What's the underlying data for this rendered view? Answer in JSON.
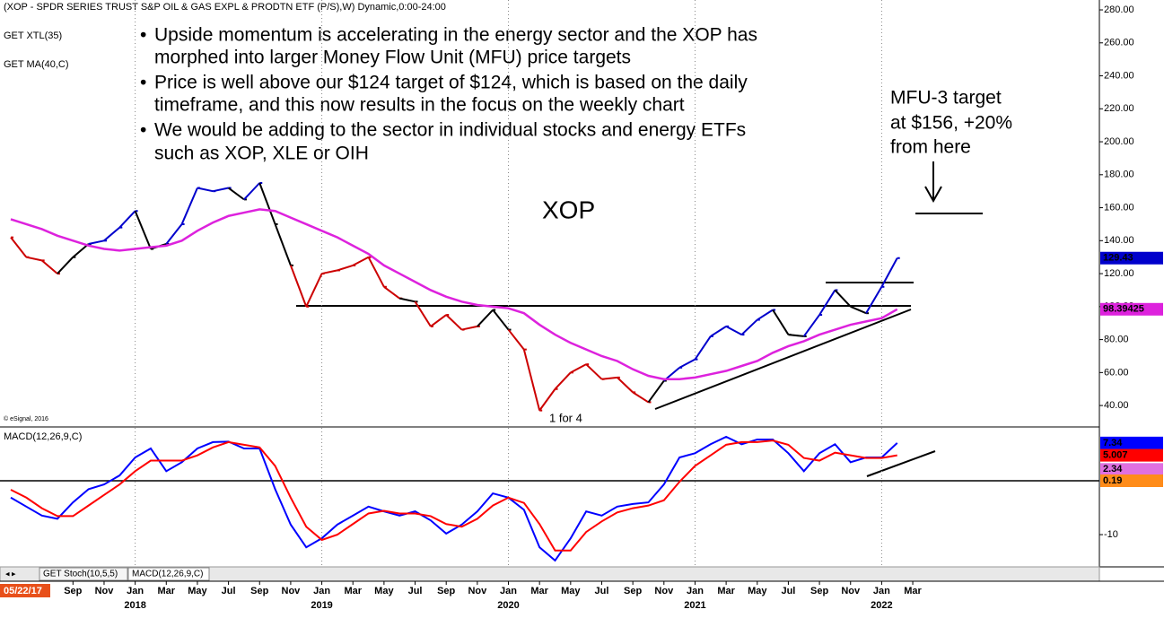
{
  "chart_data": [
    {
      "type": "line",
      "title": "(XOP - SPDR SERIES TRUST S&P OIL & GAS EXPL & PRODTN ETF (P/S),W) Dynamic,0:00-24:00",
      "studies": [
        "GET XTL(35)"
      ],
      "bullets": [
        [
          "Upside momentum is accelerating in the energy sector and the XOP has",
          "morphed into larger Money Flow Unit (MFU) price targets"
        ],
        [
          "Price is well above our $124 target of $124, which is based on the daily",
          "timeframe, and this now results in the focus on the weekly chart"
        ],
        [
          "We would be adding to the sector in individual stocks and energy ETFs",
          "such as XOP, XLE or OIH"
        ]
      ],
      "target_note": [
        "MFU-3 target",
        "at $156, +20%",
        "from here"
      ],
      "split_note": "1 for 4",
      "copyright": "© eSignal, 2016",
      "start_date": "05/22/17",
      "tabs": [
        "GET Stoch(10,5,5)",
        "MACD(12,26,9,C)"
      ],
      "x": [
        "2017-05",
        "2017-06",
        "2017-07",
        "2017-08",
        "2017-09",
        "2017-10",
        "2017-11",
        "2017-12",
        "2018-01",
        "2018-02",
        "2018-03",
        "2018-04",
        "2018-05",
        "2018-06",
        "2018-07",
        "2018-08",
        "2018-09",
        "2018-10",
        "2018-11",
        "2018-12",
        "2019-01",
        "2019-02",
        "2019-03",
        "2019-04",
        "2019-05",
        "2019-06",
        "2019-07",
        "2019-08",
        "2019-09",
        "2019-10",
        "2019-11",
        "2019-12",
        "2020-01",
        "2020-02",
        "2020-03",
        "2020-04",
        "2020-05",
        "2020-06",
        "2020-07",
        "2020-08",
        "2020-09",
        "2020-10",
        "2020-11",
        "2020-12",
        "2021-01",
        "2021-02",
        "2021-03",
        "2021-04",
        "2021-05",
        "2021-06",
        "2021-07",
        "2021-08",
        "2021-09",
        "2021-10",
        "2021-11",
        "2021-12",
        "2022-01",
        "2022-02"
      ],
      "xlim": [
        "2017-05",
        "2023-03"
      ],
      "series": [
        {
          "name": "XOP",
          "color": "#0000cc",
          "point_colors": [
            "#cc0000",
            "#cc0000",
            "#cc0000",
            "#cc0000",
            "#000000",
            "#000000",
            "#0000cc",
            "#0000cc",
            "#0000cc",
            "#000000",
            "#000000",
            "#0000cc",
            "#0000cc",
            "#0000cc",
            "#0000cc",
            "#000000",
            "#0000cc",
            "#000000",
            "#000000",
            "#cc0000",
            "#cc0000",
            "#cc0000",
            "#cc0000",
            "#cc0000",
            "#cc0000",
            "#cc0000",
            "#000000",
            "#cc0000",
            "#cc0000",
            "#cc0000",
            "#cc0000",
            "#000000",
            "#000000",
            "#cc0000",
            "#cc0000",
            "#cc0000",
            "#cc0000",
            "#cc0000",
            "#cc0000",
            "#cc0000",
            "#cc0000",
            "#cc0000",
            "#000000",
            "#0000cc",
            "#0000cc",
            "#0000cc",
            "#0000cc",
            "#0000cc",
            "#0000cc",
            "#0000cc",
            "#000000",
            "#000000",
            "#0000cc",
            "#0000cc",
            "#000000",
            "#000000",
            "#0000cc",
            "#0000cc"
          ],
          "values": [
            142,
            130,
            128,
            120,
            130,
            138,
            140,
            148,
            158,
            135,
            138,
            150,
            172,
            170,
            172,
            165,
            175,
            150,
            125,
            100,
            120,
            122,
            125,
            130,
            112,
            105,
            103,
            88,
            95,
            86,
            88,
            98,
            86,
            74,
            37,
            50,
            60,
            65,
            56,
            57,
            48,
            42,
            55,
            63,
            68,
            82,
            88,
            83,
            92,
            98,
            83,
            82,
            95,
            110,
            100,
            96,
            112,
            129.43
          ]
        },
        {
          "name": "GET MA(40,C)",
          "color": "#dd22dd",
          "values": [
            153,
            150,
            147,
            143,
            140,
            137,
            135,
            134,
            135,
            136,
            137,
            140,
            146,
            151,
            155,
            157,
            159,
            158,
            154,
            150,
            146,
            142,
            137,
            132,
            125,
            120,
            115,
            110,
            106,
            103,
            101,
            100,
            99,
            96,
            89,
            83,
            78,
            74,
            70,
            67,
            62,
            58,
            56,
            56,
            57,
            59,
            61,
            64,
            67,
            72,
            76,
            79,
            83,
            86,
            89,
            91,
            93,
            98.39425
          ]
        }
      ],
      "ylim": [
        27,
        286
      ],
      "yticks": [
        {
          "value": 40,
          "label": "40.00"
        },
        {
          "value": 60,
          "label": "60.00"
        },
        {
          "value": 80,
          "label": "80.00"
        },
        {
          "value": 100,
          "label": "100.00"
        },
        {
          "value": 120,
          "label": "120.00"
        },
        {
          "value": 140,
          "label": "140.00"
        },
        {
          "value": 160,
          "label": "160.00"
        },
        {
          "value": 180,
          "label": "180.00"
        },
        {
          "value": 200,
          "label": "200.00"
        },
        {
          "value": 220,
          "label": "220.00"
        },
        {
          "value": 240,
          "label": "240.00"
        },
        {
          "value": 260,
          "label": "260.00"
        },
        {
          "value": 280,
          "label": "280.00"
        }
      ],
      "xticks": [
        {
          "value": "2017-09",
          "label": "Sep"
        },
        {
          "value": "2017-11",
          "label": "Nov"
        },
        {
          "value": "2018-01",
          "label": "Jan"
        },
        {
          "value": "2018-03",
          "label": "Mar"
        },
        {
          "value": "2018-05",
          "label": "May"
        },
        {
          "value": "2018-07",
          "label": "Jul"
        },
        {
          "value": "2018-09",
          "label": "Sep"
        },
        {
          "value": "2018-11",
          "label": "Nov"
        },
        {
          "value": "2019-01",
          "label": "Jan"
        },
        {
          "value": "2019-03",
          "label": "Mar"
        },
        {
          "value": "2019-05",
          "label": "May"
        },
        {
          "value": "2019-07",
          "label": "Jul"
        },
        {
          "value": "2019-09",
          "label": "Sep"
        },
        {
          "value": "2019-11",
          "label": "Nov"
        },
        {
          "value": "2020-01",
          "label": "Jan"
        },
        {
          "value": "2020-03",
          "label": "Mar"
        },
        {
          "value": "2020-05",
          "label": "May"
        },
        {
          "value": "2020-07",
          "label": "Jul"
        },
        {
          "value": "2020-09",
          "label": "Sep"
        },
        {
          "value": "2020-11",
          "label": "Nov"
        },
        {
          "value": "2021-01",
          "label": "Jan"
        },
        {
          "value": "2021-03",
          "label": "Mar"
        },
        {
          "value": "2021-05",
          "label": "May"
        },
        {
          "value": "2021-07",
          "label": "Jul"
        },
        {
          "value": "2021-09",
          "label": "Sep"
        },
        {
          "value": "2021-11",
          "label": "Nov"
        },
        {
          "value": "2022-01",
          "label": "Jan"
        },
        {
          "value": "2022-03",
          "label": "Mar"
        }
      ],
      "year_labels": [
        {
          "value": "2018-01",
          "label": "2018"
        },
        {
          "value": "2019-01",
          "label": "2019"
        },
        {
          "value": "2020-01",
          "label": "2020"
        },
        {
          "value": "2021-01",
          "label": "2021"
        },
        {
          "value": "2022-01",
          "label": "2022"
        }
      ],
      "grid": true
    },
    {
      "type": "line",
      "series": [
        {
          "name": "MACD(12,26,9,C)",
          "color": "#0000ff",
          "values": [
            -3,
            -4.7,
            -6.4,
            -7,
            -3.9,
            -1.4,
            -0.5,
            1.2,
            4.6,
            6.3,
            2,
            3.7,
            6.3,
            7.5,
            7.6,
            6.3,
            6.3,
            -1.4,
            -8.1,
            -12.4,
            -10.7,
            -8.1,
            -6.4,
            -4.7,
            -5.6,
            -6.4,
            -5.6,
            -7.3,
            -9.8,
            -8.1,
            -5.6,
            -2.2,
            -3,
            -5.3,
            -12.4,
            -14.9,
            -10.7,
            -5.6,
            -6.4,
            -4.7,
            -4.2,
            -3.9,
            -0.5,
            4.6,
            5.4,
            7.1,
            8.5,
            7.1,
            8,
            8,
            5.4,
            2,
            5.4,
            7.1,
            3.7,
            4.6,
            4.6,
            7.34
          ]
        },
        {
          "color": "#ff0000",
          "values": [
            -1.5,
            -3,
            -5,
            -6.5,
            -6.5,
            -4.5,
            -2.5,
            -0.5,
            2,
            4,
            4,
            4,
            5,
            6.5,
            7.5,
            7,
            6.5,
            3,
            -3,
            -8.5,
            -11,
            -10,
            -8,
            -6,
            -5.5,
            -6,
            -6,
            -6.5,
            -8,
            -8.5,
            -7,
            -4.5,
            -3,
            -4,
            -8,
            -13,
            -13,
            -9.5,
            -7.5,
            -5.8,
            -5,
            -4.5,
            -3.5,
            0,
            3,
            5,
            7,
            7.5,
            7.5,
            7.8,
            7,
            4.5,
            4,
            5.5,
            5,
            4.5,
            4.5,
            5.007
          ]
        }
      ],
      "histogram_last": {
        "value": 2.34,
        "color": "#e070e0"
      },
      "zero_line": {
        "value": 0.19,
        "color": "#ff8c1a"
      },
      "ylim": [
        -16.1,
        10.2
      ],
      "yticks": [
        -10
      ]
    }
  ]
}
